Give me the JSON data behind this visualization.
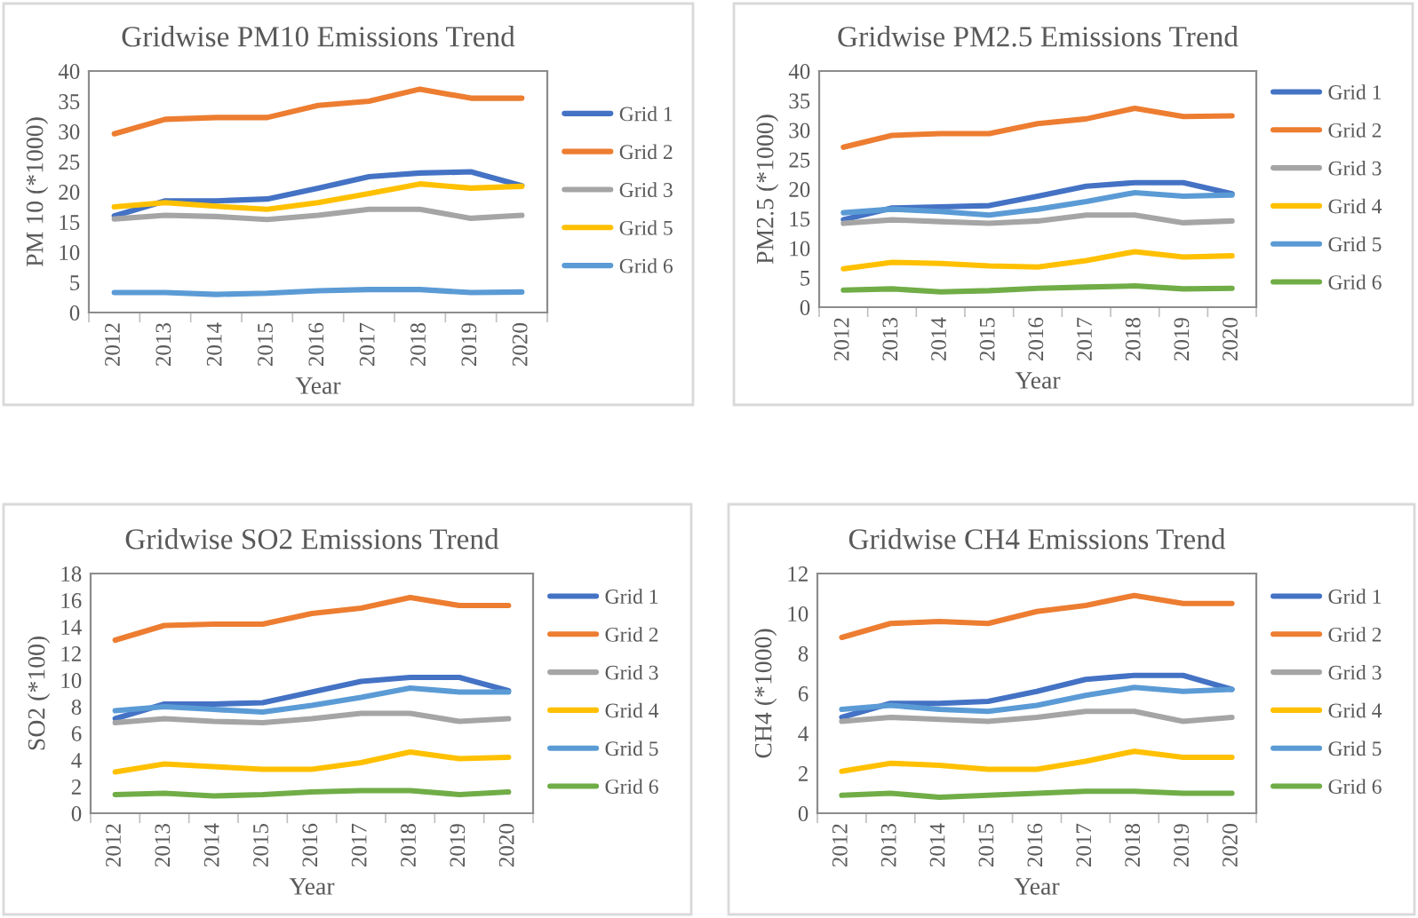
{
  "chart_data": [
    {
      "type": "line",
      "title": "Gridwise PM10 Emissions Trend",
      "xlabel": "Year",
      "ylabel": "PM 10 (*1000)",
      "categories": [
        "2012",
        "2013",
        "2014",
        "2015",
        "2016",
        "2017",
        "2018",
        "2019",
        "2020"
      ],
      "ylim": [
        0,
        40
      ],
      "yticks": [
        0,
        5,
        10,
        15,
        20,
        25,
        30,
        35,
        40
      ],
      "grid": false,
      "legend": "right",
      "marker": "none",
      "line_style": "solid",
      "series": [
        {
          "name": "Grid 1",
          "color": "#4472c4",
          "values": [
            16,
            18.5,
            18.5,
            18.8,
            20.6,
            22.5,
            23.1,
            23.3,
            21
          ]
        },
        {
          "name": "Grid 2",
          "color": "#ed7d31",
          "values": [
            29.6,
            32,
            32.3,
            32.3,
            34.3,
            35,
            37,
            35.5,
            35.5
          ]
        },
        {
          "name": "Grid 3",
          "color": "#a5a5a5",
          "values": [
            15.5,
            16.1,
            15.9,
            15.4,
            16.1,
            17.1,
            17.1,
            15.6,
            16.1
          ]
        },
        {
          "name": "Grid 5",
          "color": "#ffc000",
          "values": [
            17.5,
            18.2,
            17.6,
            17.1,
            18.2,
            19.7,
            21.3,
            20.6,
            20.9
          ]
        },
        {
          "name": "Grid 6",
          "color": "#5b9bd5",
          "values": [
            3.3,
            3.3,
            3.0,
            3.2,
            3.6,
            3.8,
            3.8,
            3.3,
            3.4
          ]
        }
      ]
    },
    {
      "type": "line",
      "title": "Gridwise PM2.5 Emissions Trend",
      "xlabel": "Year",
      "ylabel": "PM2.5 (*1000)",
      "categories": [
        "2012",
        "2013",
        "2014",
        "2015",
        "2016",
        "2017",
        "2018",
        "2019",
        "2020"
      ],
      "ylim": [
        0,
        40
      ],
      "yticks": [
        0,
        5,
        10,
        15,
        20,
        25,
        30,
        35,
        40
      ],
      "grid": false,
      "legend": "right",
      "marker": "none",
      "line_style": "solid",
      "series": [
        {
          "name": "Grid 1",
          "color": "#4472c4",
          "values": [
            14.8,
            16.8,
            17.0,
            17.2,
            18.8,
            20.5,
            21.1,
            21.1,
            19.2
          ]
        },
        {
          "name": "Grid 2",
          "color": "#ed7d31",
          "values": [
            27.1,
            29.1,
            29.4,
            29.4,
            31.1,
            31.9,
            33.7,
            32.3,
            32.4
          ]
        },
        {
          "name": "Grid 3",
          "color": "#a5a5a5",
          "values": [
            14.2,
            14.8,
            14.5,
            14.2,
            14.6,
            15.6,
            15.6,
            14.3,
            14.6
          ]
        },
        {
          "name": "Grid 4",
          "color": "#ffc000",
          "values": [
            6.5,
            7.6,
            7.4,
            7.0,
            6.8,
            7.9,
            9.4,
            8.5,
            8.7
          ]
        },
        {
          "name": "Grid 5",
          "color": "#5b9bd5",
          "values": [
            16.0,
            16.6,
            16.2,
            15.6,
            16.6,
            17.9,
            19.4,
            18.8,
            19.0
          ]
        },
        {
          "name": "Grid 6",
          "color": "#70ad47",
          "values": [
            2.9,
            3.1,
            2.6,
            2.8,
            3.2,
            3.4,
            3.6,
            3.1,
            3.2
          ]
        }
      ]
    },
    {
      "type": "line",
      "title": "Gridwise SO2 Emissions Trend",
      "xlabel": "Year",
      "ylabel": "SO2 (*100)",
      "categories": [
        "2012",
        "2013",
        "2014",
        "2015",
        "2016",
        "2017",
        "2018",
        "2019",
        "2020"
      ],
      "ylim": [
        0,
        18
      ],
      "yticks": [
        0,
        2,
        4,
        6,
        8,
        10,
        12,
        14,
        16,
        18
      ],
      "grid": false,
      "legend": "right",
      "marker": "none",
      "line_style": "solid",
      "series": [
        {
          "name": "Grid 1",
          "color": "#4472c4",
          "values": [
            7.1,
            8.2,
            8.2,
            8.3,
            9.1,
            9.9,
            10.2,
            10.2,
            9.2
          ]
        },
        {
          "name": "Grid 2",
          "color": "#ed7d31",
          "values": [
            13.0,
            14.1,
            14.2,
            14.2,
            15.0,
            15.4,
            16.2,
            15.6,
            15.6
          ]
        },
        {
          "name": "Grid 3",
          "color": "#a5a5a5",
          "values": [
            6.8,
            7.1,
            6.9,
            6.8,
            7.1,
            7.5,
            7.5,
            6.9,
            7.1
          ]
        },
        {
          "name": "Grid 4",
          "color": "#ffc000",
          "values": [
            3.1,
            3.7,
            3.5,
            3.3,
            3.3,
            3.8,
            4.6,
            4.1,
            4.2
          ]
        },
        {
          "name": "Grid 5",
          "color": "#5b9bd5",
          "values": [
            7.7,
            8.0,
            7.8,
            7.6,
            8.1,
            8.7,
            9.4,
            9.1,
            9.1
          ]
        },
        {
          "name": "Grid 6",
          "color": "#70ad47",
          "values": [
            1.4,
            1.5,
            1.3,
            1.4,
            1.6,
            1.7,
            1.7,
            1.4,
            1.6
          ]
        }
      ]
    },
    {
      "type": "line",
      "title": "Gridwise CH4 Emissions Trend",
      "xlabel": "Year",
      "ylabel": "CH4 (*1000)",
      "categories": [
        "2012",
        "2013",
        "2014",
        "2015",
        "2016",
        "2017",
        "2018",
        "2019",
        "2020"
      ],
      "ylim": [
        0,
        12
      ],
      "yticks": [
        0,
        2,
        4,
        6,
        8,
        10,
        12
      ],
      "grid": false,
      "legend": "right",
      "marker": "none",
      "line_style": "solid",
      "series": [
        {
          "name": "Grid 1",
          "color": "#4472c4",
          "values": [
            4.8,
            5.5,
            5.5,
            5.6,
            6.1,
            6.7,
            6.9,
            6.9,
            6.2
          ]
        },
        {
          "name": "Grid 2",
          "color": "#ed7d31",
          "values": [
            8.8,
            9.5,
            9.6,
            9.5,
            10.1,
            10.4,
            10.9,
            10.5,
            10.5
          ]
        },
        {
          "name": "Grid 3",
          "color": "#a5a5a5",
          "values": [
            4.6,
            4.8,
            4.7,
            4.6,
            4.8,
            5.1,
            5.1,
            4.6,
            4.8
          ]
        },
        {
          "name": "Grid 4",
          "color": "#ffc000",
          "values": [
            2.1,
            2.5,
            2.4,
            2.2,
            2.2,
            2.6,
            3.1,
            2.8,
            2.8
          ]
        },
        {
          "name": "Grid 5",
          "color": "#5b9bd5",
          "values": [
            5.2,
            5.4,
            5.2,
            5.1,
            5.4,
            5.9,
            6.3,
            6.1,
            6.2
          ]
        },
        {
          "name": "Grid 6",
          "color": "#70ad47",
          "values": [
            0.9,
            1.0,
            0.8,
            0.9,
            1.0,
            1.1,
            1.1,
            1.0,
            1.0
          ]
        }
      ]
    }
  ]
}
